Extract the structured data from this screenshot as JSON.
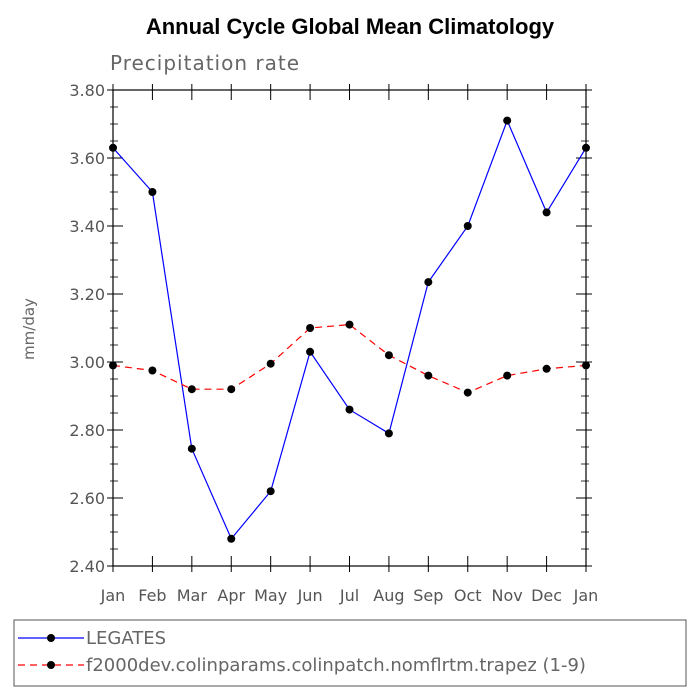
{
  "chart_data": {
    "type": "line",
    "title": "Annual Cycle Global Mean Climatology",
    "subtitle": "Precipitation rate",
    "ylabel": "mm/day",
    "xlabel": "",
    "categories": [
      "Jan",
      "Feb",
      "Mar",
      "Apr",
      "May",
      "Jun",
      "Jul",
      "Aug",
      "Sep",
      "Oct",
      "Nov",
      "Dec",
      "Jan"
    ],
    "ylim": [
      2.4,
      3.8
    ],
    "yticks": [
      "2.40",
      "2.60",
      "2.80",
      "3.00",
      "3.20",
      "3.40",
      "3.60",
      "3.80"
    ],
    "series": [
      {
        "name": "LEGATES",
        "color": "#0000ff",
        "dash": "solid",
        "values": [
          3.63,
          3.5,
          2.745,
          2.48,
          2.62,
          3.03,
          2.86,
          2.79,
          3.235,
          3.4,
          3.71,
          3.44,
          3.63
        ]
      },
      {
        "name": "f2000dev.colinparams.colinpatch.nomflrtm.trapez (1-9)",
        "color": "#ff0000",
        "dash": "dashed",
        "values": [
          2.99,
          2.975,
          2.92,
          2.92,
          2.995,
          3.1,
          3.11,
          3.02,
          2.96,
          2.91,
          2.96,
          2.98,
          2.99
        ]
      }
    ]
  }
}
